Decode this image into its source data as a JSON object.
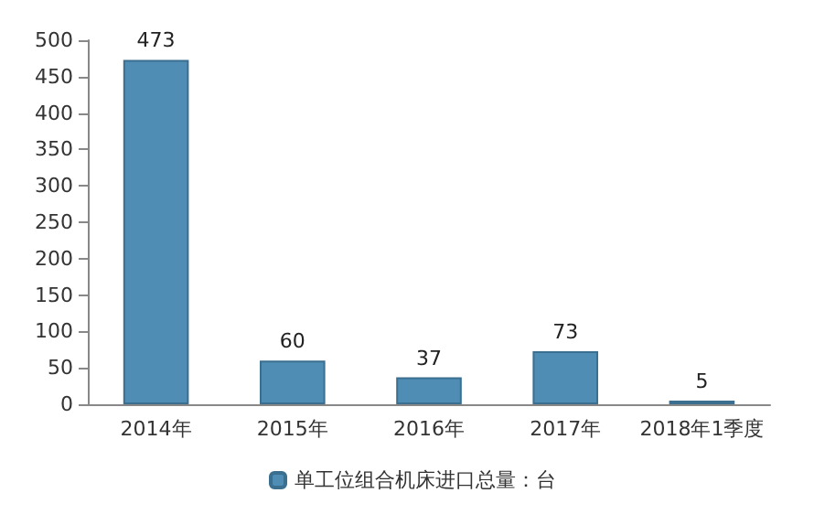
{
  "chart_data": {
    "type": "bar",
    "categories": [
      "2014年",
      "2015年",
      "2016年",
      "2017年",
      "2018年1季度"
    ],
    "series": [
      {
        "name": "单工位组合机床进口总量：台",
        "color": "#4f8db5",
        "values": [
          473,
          60,
          37,
          73,
          5
        ]
      }
    ],
    "ylim": [
      0,
      500
    ],
    "yticks": [
      0,
      50,
      100,
      150,
      200,
      250,
      300,
      350,
      400,
      450,
      500
    ],
    "grid": false,
    "legend": "bottom",
    "data_labels": true
  }
}
